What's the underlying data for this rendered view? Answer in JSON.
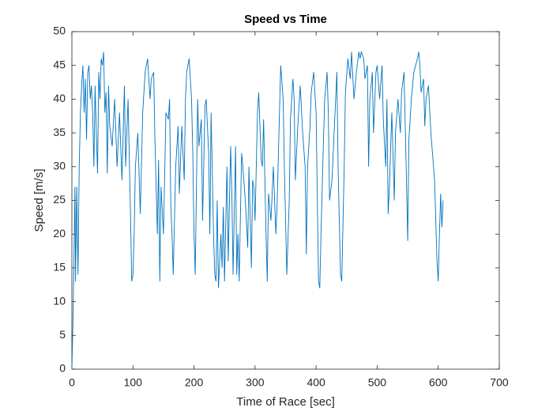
{
  "chart_data": {
    "type": "line",
    "title": "Speed vs Time",
    "x_label": "Time of Race [sec]",
    "y_label": "Speed [m/s]",
    "xlim": [
      0,
      700
    ],
    "xticks": [
      0,
      100,
      200,
      300,
      400,
      500,
      600,
      700
    ],
    "ylim": [
      0,
      50
    ],
    "yticks": [
      0,
      5,
      10,
      15,
      20,
      25,
      30,
      35,
      40,
      45,
      50
    ],
    "series": [
      {
        "color": "#0072bd",
        "x": [
          0,
          2,
          4,
          5,
          6,
          8,
          10,
          12,
          14,
          16,
          18,
          20,
          22,
          24,
          26,
          28,
          30,
          32,
          34,
          36,
          38,
          40,
          42,
          44,
          46,
          48,
          50,
          52,
          54,
          56,
          58,
          60,
          62,
          66,
          70,
          74,
          78,
          82,
          86,
          88,
          92,
          96,
          98,
          100,
          102,
          104,
          108,
          112,
          116,
          120,
          124,
          128,
          130,
          134,
          136,
          140,
          142,
          144,
          146,
          150,
          154,
          158,
          160,
          162,
          164,
          166,
          170,
          174,
          176,
          180,
          184,
          186,
          188,
          192,
          196,
          198,
          200,
          202,
          206,
          208,
          212,
          214,
          218,
          220,
          224,
          226,
          228,
          232,
          234,
          236,
          238,
          240,
          244,
          246,
          248,
          250,
          254,
          256,
          260,
          262,
          264,
          268,
          270,
          272,
          274,
          278,
          280,
          284,
          288,
          290,
          294,
          296,
          298,
          300,
          304,
          306,
          310,
          312,
          314,
          318,
          320,
          322,
          326,
          330,
          334,
          336,
          340,
          342,
          346,
          348,
          352,
          356,
          358,
          362,
          364,
          366,
          370,
          374,
          378,
          382,
          384,
          386,
          390,
          392,
          396,
          400,
          402,
          404,
          406,
          408,
          410,
          414,
          418,
          420,
          422,
          426,
          430,
          434,
          436,
          440,
          442,
          446,
          448,
          452,
          456,
          458,
          462,
          466,
          470,
          472,
          474,
          478,
          480,
          484,
          486,
          488,
          492,
          494,
          498,
          500,
          504,
          508,
          510,
          514,
          516,
          518,
          520,
          524,
          528,
          530,
          534,
          538,
          540,
          544,
          548,
          550,
          552,
          556,
          560,
          566,
          568,
          570,
          572,
          576,
          578,
          580,
          584,
          588,
          594,
          598,
          600,
          602,
          604,
          606,
          608
        ],
        "values": [
          0,
          8,
          20,
          27,
          13,
          27,
          14,
          30,
          38,
          42,
          45,
          38,
          43,
          34,
          44,
          45,
          40,
          42,
          38,
          30,
          42,
          35,
          29,
          44,
          40,
          46,
          45,
          47,
          38,
          41,
          29,
          42,
          36,
          33,
          40,
          30,
          38,
          28,
          42,
          30,
          40,
          23,
          13,
          14,
          20,
          30,
          35,
          23,
          38,
          44,
          46,
          40,
          43,
          44,
          34,
          20,
          31,
          13,
          27,
          20,
          38,
          37,
          40,
          24,
          20,
          14,
          30,
          36,
          26,
          36,
          28,
          40,
          44,
          46,
          40,
          32,
          20,
          14,
          40,
          33,
          37,
          22,
          39,
          40,
          32,
          20,
          38,
          20,
          14,
          13,
          25,
          12,
          20,
          15,
          24,
          13,
          30,
          16,
          33,
          26,
          14,
          33,
          14,
          20,
          13,
          32,
          30,
          25,
          18,
          30,
          15,
          28,
          27,
          22,
          38,
          41,
          31,
          30,
          37,
          20,
          13,
          26,
          22,
          30,
          20,
          24,
          38,
          45,
          40,
          30,
          14,
          25,
          37,
          43,
          40,
          28,
          36,
          42,
          35,
          30,
          17,
          30,
          36,
          41,
          44,
          38,
          25,
          13,
          12,
          20,
          27,
          40,
          44,
          38,
          25,
          28,
          36,
          44,
          30,
          14,
          13,
          30,
          41,
          46,
          43,
          47,
          40,
          44,
          47,
          46,
          47,
          46,
          43,
          45,
          30,
          40,
          44,
          35,
          44,
          45,
          40,
          45,
          37,
          30,
          40,
          23,
          27,
          38,
          25,
          35,
          40,
          35,
          41,
          44,
          28,
          19,
          34,
          40,
          44,
          46,
          47,
          45,
          41,
          43,
          36,
          40,
          42,
          35,
          28,
          16,
          13,
          20,
          26,
          21,
          25
        ]
      }
    ]
  }
}
